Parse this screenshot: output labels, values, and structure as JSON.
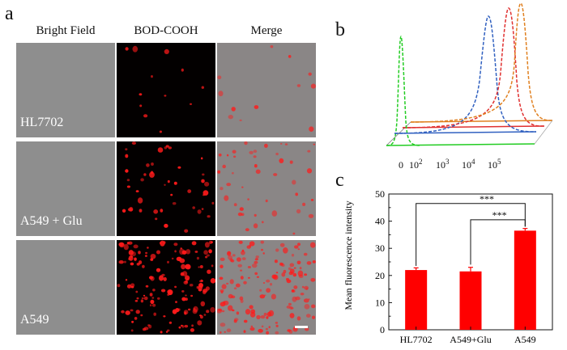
{
  "figure": {
    "panel_a": {
      "letter": "a",
      "columns": [
        "Bright Field",
        "BOD-COOH",
        "Merge"
      ],
      "rows": [
        "HL7702",
        "A549 + Glu",
        "A549"
      ],
      "colors": {
        "brightfield": "#8e8e8e",
        "fluorescence": "#030000",
        "cell_red": "#ff1a1a"
      }
    },
    "panel_b": {
      "letter": "b",
      "tick_labels": [
        "0",
        "10",
        "10",
        "10",
        "10"
      ],
      "tick_exponents": [
        "",
        "2",
        "3",
        "4",
        "5"
      ],
      "curve_colors": [
        "#22cc22",
        "#3060c0",
        "#e03030",
        "#e08020"
      ]
    },
    "panel_c": {
      "letter": "c",
      "significance": [
        "***",
        "***"
      ]
    }
  },
  "chart_data": {
    "type": "bar",
    "categories": [
      "HL7702",
      "A549+Glu",
      "A549"
    ],
    "values": [
      22.0,
      21.5,
      36.5
    ],
    "errors": [
      0.8,
      1.5,
      0.8
    ],
    "ylabel": "Mean fluorescence intensity",
    "xlabel": "",
    "ylim": [
      0,
      50
    ],
    "yticks": [
      0,
      10,
      20,
      30,
      40,
      50
    ],
    "bar_color": "#ff0000",
    "grid": false
  }
}
